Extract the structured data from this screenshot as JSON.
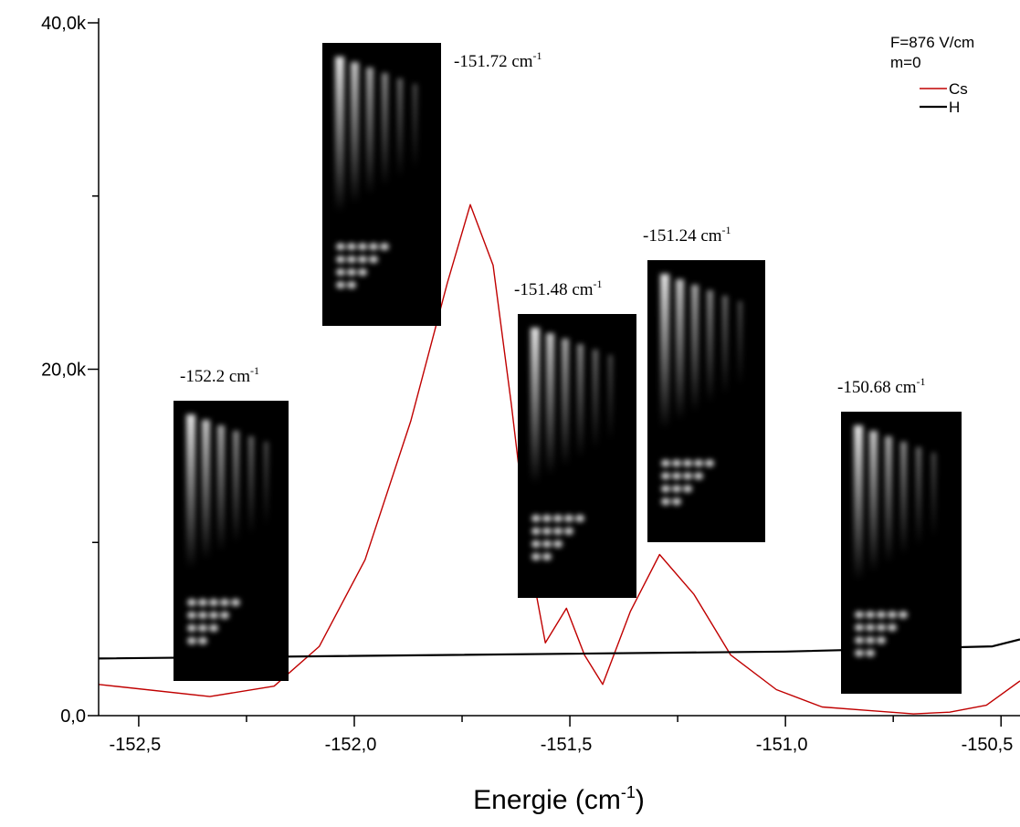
{
  "chart_data": {
    "type": "line",
    "x_label": {
      "text": "Energie (cm",
      "sup": "-1",
      "close": ")"
    },
    "xlim": [
      -152.593,
      -150.456
    ],
    "xticks": [
      {
        "value": -152.5,
        "label": "-152,5"
      },
      {
        "value": -152.0,
        "label": "-152,0"
      },
      {
        "value": -151.5,
        "label": "-151,5"
      },
      {
        "value": -151.0,
        "label": "-151,0"
      },
      {
        "value": -150.5,
        "label": "-150,5"
      }
    ],
    "xminorticks": [
      -152.25,
      -151.75,
      -151.25,
      -150.75
    ],
    "ylim": [
      0,
      40000
    ],
    "yticks": [
      {
        "value": 0,
        "label": "0,0"
      },
      {
        "value": 20000,
        "label": "20,0k"
      },
      {
        "value": 40000,
        "label": "40,0k"
      }
    ],
    "yminorticks": [
      10000,
      30000
    ],
    "legend_title": [
      "F=876 V/cm",
      "m=0"
    ],
    "legend": "upper right",
    "series": [
      {
        "name": "Cs",
        "color": "#c00000",
        "x": [
          -152.593,
          -152.335,
          -152.186,
          -152.081,
          -151.975,
          -151.869,
          -151.784,
          -151.731,
          -151.678,
          -151.636,
          -151.593,
          -151.557,
          -151.508,
          -151.466,
          -151.424,
          -151.36,
          -151.292,
          -151.212,
          -151.127,
          -151.021,
          -150.915,
          -150.809,
          -150.703,
          -150.619,
          -150.534,
          -150.456
        ],
        "values": [
          1800,
          1100,
          1700,
          4000,
          9000,
          17000,
          25000,
          29500,
          26000,
          18000,
          9000,
          4200,
          6200,
          3500,
          1800,
          6000,
          9300,
          7000,
          3500,
          1500,
          500,
          300,
          100,
          200,
          600,
          2000
        ]
      },
      {
        "name": "H",
        "color": "#000000",
        "x": [
          -152.593,
          -151.0,
          -150.52,
          -150.456
        ],
        "values": [
          3300,
          3700,
          4000,
          4400
        ]
      }
    ],
    "annotations": [
      {
        "text": "-152.2 cm",
        "sup": "-1"
      },
      {
        "text": "-151.72 cm",
        "sup": "-1"
      },
      {
        "text": "-151.48 cm",
        "sup": "-1"
      },
      {
        "text": "-151.24 cm",
        "sup": "-1"
      },
      {
        "text": "-150.68 cm",
        "sup": "-1"
      }
    ]
  }
}
